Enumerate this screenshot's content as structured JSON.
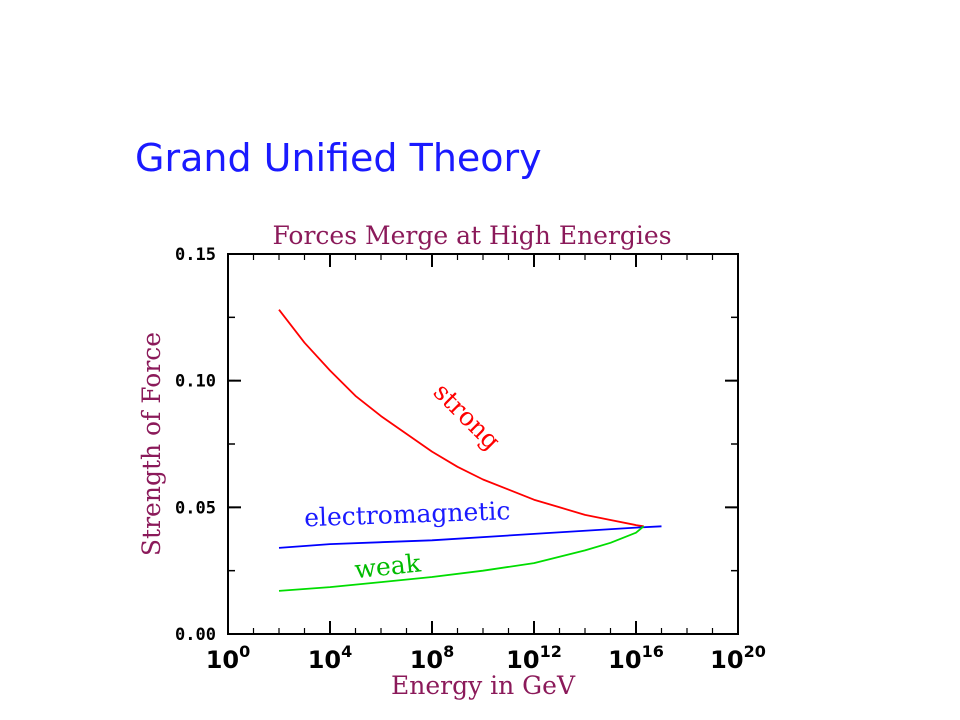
{
  "slide": {
    "title": "Grand Unified Theory"
  },
  "chart_data": {
    "type": "line",
    "title": "Forces Merge at High Energies",
    "xlabel": "Energy in GeV",
    "ylabel": "Strength of Force",
    "x_scale": "log",
    "xlim": [
      1,
      1e+20
    ],
    "ylim": [
      0,
      0.15
    ],
    "x_ticks": [
      {
        "value": 1,
        "base": "10",
        "exp": "0"
      },
      {
        "value": 10000.0,
        "base": "10",
        "exp": "4"
      },
      {
        "value": 100000000.0,
        "base": "10",
        "exp": "8"
      },
      {
        "value": 1000000000000.0,
        "base": "10",
        "exp": "12"
      },
      {
        "value": 1e+16,
        "base": "10",
        "exp": "16"
      },
      {
        "value": 1e+20,
        "base": "10",
        "exp": "20"
      }
    ],
    "y_ticks": [
      {
        "value": 0,
        "label": "0.00"
      },
      {
        "value": 0.05,
        "label": "0.05"
      },
      {
        "value": 0.1,
        "label": "0.10"
      },
      {
        "value": 0.15,
        "label": "0.15"
      }
    ],
    "grid": false,
    "series": [
      {
        "name": "strong",
        "color": "#ff0000",
        "x": [
          100,
          1000.0,
          10000.0,
          100000.0,
          1000000.0,
          10000000.0,
          100000000.0,
          1000000000.0,
          10000000000.0,
          100000000000.0,
          1000000000000.0,
          10000000000000.0,
          100000000000000.0,
          1000000000000000.0,
          1e+16,
          2e+16
        ],
        "y": [
          0.128,
          0.115,
          0.104,
          0.094,
          0.086,
          0.079,
          0.072,
          0.066,
          0.061,
          0.057,
          0.053,
          0.05,
          0.047,
          0.045,
          0.043,
          0.0425
        ]
      },
      {
        "name": "electromagnetic",
        "color": "#0000ff",
        "x": [
          100,
          10000.0,
          100000000.0,
          1000000000000.0,
          1e+16,
          1e+17
        ],
        "y": [
          0.034,
          0.0355,
          0.037,
          0.0395,
          0.042,
          0.0425
        ]
      },
      {
        "name": "weak",
        "color": "#00dd00",
        "x": [
          100,
          10000.0,
          1000000.0,
          100000000.0,
          10000000000.0,
          1000000000000.0,
          100000000000000.0,
          1000000000000000.0,
          1e+16,
          2e+16
        ],
        "y": [
          0.017,
          0.0185,
          0.0205,
          0.0225,
          0.025,
          0.028,
          0.033,
          0.036,
          0.04,
          0.0425
        ]
      }
    ],
    "annotations": [
      {
        "text": "strong",
        "x": 100000000.0,
        "y": 0.095,
        "rotate": 45,
        "color": "#ff0000"
      },
      {
        "text": "electromagnetic",
        "x": 1000.0,
        "y": 0.0425,
        "rotate": -2,
        "color": "#1a1aff"
      },
      {
        "text": "weak",
        "x": 100000.0,
        "y": 0.022,
        "rotate": -6,
        "color": "#00bb00"
      }
    ]
  }
}
